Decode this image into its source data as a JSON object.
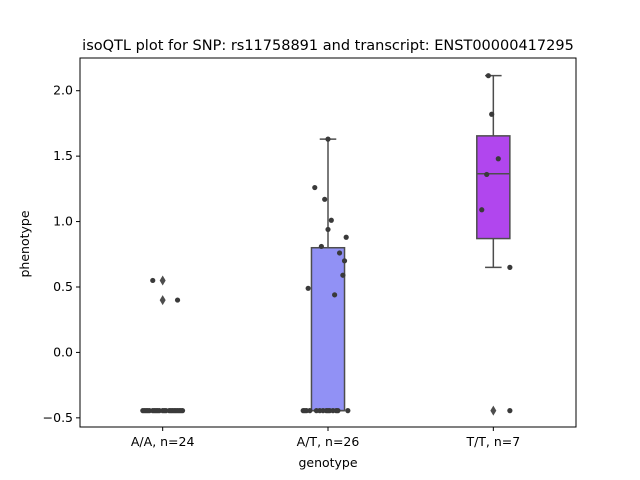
{
  "chart_data": {
    "type": "box",
    "title": "isoQTL plot for SNP: rs11758891 and transcript: ENST00000417295",
    "xlabel": "genotype",
    "ylabel": "phenotype",
    "ylim": [
      -0.57,
      2.25
    ],
    "yticks": [
      -0.5,
      0.0,
      0.5,
      1.0,
      1.5,
      2.0
    ],
    "ytick_labels": [
      "−0.5",
      "0.0",
      "0.5",
      "1.0",
      "1.5",
      "2.0"
    ],
    "categories": [
      "A/A, n=24",
      "A/T, n=26",
      "T/T, n=7"
    ],
    "colors": [
      "#8a94ff",
      "#9191f5",
      "#b146ee"
    ],
    "boxes": [
      {
        "q1": -0.445,
        "median": -0.445,
        "q3": -0.445,
        "whisker_low": -0.445,
        "whisker_high": -0.445,
        "fliers": [
          0.55,
          0.4
        ]
      },
      {
        "q1": -0.445,
        "median": -0.445,
        "q3": 0.8,
        "whisker_low": -0.445,
        "whisker_high": 1.63,
        "fliers": []
      },
      {
        "q1": 0.87,
        "median": 1.365,
        "q3": 1.655,
        "whisker_low": 0.65,
        "whisker_high": 2.115,
        "fliers": [
          -0.445
        ]
      }
    ],
    "points": [
      {
        "x": -0.12,
        "y": -0.445
      },
      {
        "x": -0.1,
        "y": -0.445
      },
      {
        "x": -0.08,
        "y": -0.445
      },
      {
        "x": -0.06,
        "y": -0.445
      },
      {
        "x": -0.04,
        "y": -0.445
      },
      {
        "x": -0.02,
        "y": -0.445
      },
      {
        "x": 0.0,
        "y": -0.445
      },
      {
        "x": 0.02,
        "y": -0.445
      },
      {
        "x": 0.04,
        "y": -0.445
      },
      {
        "x": 0.06,
        "y": -0.445
      },
      {
        "x": 0.08,
        "y": -0.445
      },
      {
        "x": 0.1,
        "y": -0.445
      },
      {
        "x": 0.12,
        "y": -0.445
      },
      {
        "x": -0.11,
        "y": -0.445
      },
      {
        "x": -0.05,
        "y": -0.445
      },
      {
        "x": 0.01,
        "y": -0.445
      },
      {
        "x": 0.07,
        "y": -0.445
      },
      {
        "x": 0.11,
        "y": -0.445
      },
      {
        "x": -0.09,
        "y": -0.445
      },
      {
        "x": -0.03,
        "y": -0.445
      },
      {
        "x": 0.05,
        "y": -0.445
      },
      {
        "x": 0.09,
        "y": -0.445
      },
      {
        "x": -0.06,
        "y": 0.55
      },
      {
        "x": 0.09,
        "y": 0.4
      },
      {
        "x": 1.0,
        "y": 1.63
      },
      {
        "x": 0.92,
        "y": 1.26
      },
      {
        "x": 0.98,
        "y": 1.17
      },
      {
        "x": 1.02,
        "y": 1.01
      },
      {
        "x": 1.0,
        "y": 0.94
      },
      {
        "x": 1.11,
        "y": 0.88
      },
      {
        "x": 0.96,
        "y": 0.81
      },
      {
        "x": 1.07,
        "y": 0.76
      },
      {
        "x": 1.1,
        "y": 0.7
      },
      {
        "x": 1.09,
        "y": 0.59
      },
      {
        "x": 0.88,
        "y": 0.49
      },
      {
        "x": 1.04,
        "y": 0.44
      },
      {
        "x": 0.85,
        "y": -0.445
      },
      {
        "x": 0.87,
        "y": -0.445
      },
      {
        "x": 0.89,
        "y": -0.445
      },
      {
        "x": 0.95,
        "y": -0.445
      },
      {
        "x": 0.97,
        "y": -0.445
      },
      {
        "x": 0.99,
        "y": -0.445
      },
      {
        "x": 1.01,
        "y": -0.445
      },
      {
        "x": 1.03,
        "y": -0.445
      },
      {
        "x": 1.05,
        "y": -0.445
      },
      {
        "x": 1.12,
        "y": -0.445
      },
      {
        "x": 0.86,
        "y": -0.445
      },
      {
        "x": 1.0,
        "y": -0.445
      },
      {
        "x": 0.93,
        "y": -0.445
      },
      {
        "x": 1.06,
        "y": -0.445
      },
      {
        "x": 1.97,
        "y": 2.115
      },
      {
        "x": 1.99,
        "y": 1.82
      },
      {
        "x": 2.03,
        "y": 1.48
      },
      {
        "x": 1.96,
        "y": 1.36
      },
      {
        "x": 1.93,
        "y": 1.09
      },
      {
        "x": 2.1,
        "y": 0.65
      },
      {
        "x": 2.1,
        "y": -0.445
      }
    ]
  }
}
